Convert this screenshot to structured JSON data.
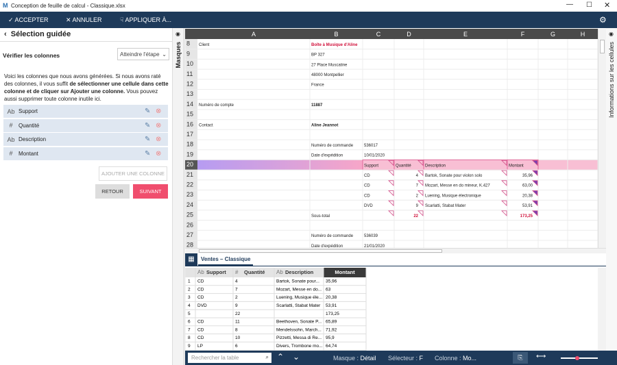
{
  "window": {
    "title": "Conception de feuille de calcul - Classique.xlsx"
  },
  "toolbar": {
    "accept": "ACCEPTER",
    "cancel": "ANNULER",
    "apply": "APPLIQUER À..."
  },
  "panel": {
    "title": "Sélection guidée",
    "step_label": "Vérifier les colonnes",
    "step_select": "Atteindre l'étape",
    "intro": [
      "Voici les colonnes que nous avons générées. Si nous avons raté des colonnes, il vous suffit ",
      "de sélectionner une cellule dans cette colonne et de cliquer sur Ajouter une colonne.",
      "Vous pouvez aussi supprimer toute colonne inutile ici."
    ],
    "columns": [
      {
        "type": "Ab",
        "name": "Support"
      },
      {
        "type": "#",
        "name": "Quantité"
      },
      {
        "type": "Ab",
        "name": "Description"
      },
      {
        "type": "#",
        "name": "Montant"
      }
    ],
    "add_button": "AJOUTER UNE COLONNE",
    "back_button": "RETOUR",
    "next_button": "SUIVANT"
  },
  "side_tabs": {
    "left": "Masques",
    "right": "Informations sur les cellules"
  },
  "sheet": {
    "columns": [
      "A",
      "B",
      "C",
      "D",
      "E",
      "F",
      "G",
      "H"
    ],
    "rows": [
      {
        "number": "8",
        "cells": [
          "Client",
          "Boîte à Musique d'Aline"
        ]
      },
      {
        "number": "9",
        "cells": [
          null,
          "BP 327"
        ]
      },
      {
        "number": "10",
        "cells": [
          null,
          "27 Place Muscatine"
        ]
      },
      {
        "number": "11",
        "cells": [
          null,
          "48000 Montpellier"
        ]
      },
      {
        "number": "12",
        "cells": [
          null,
          "France"
        ]
      },
      {
        "number": "13",
        "cells": []
      },
      {
        "number": "14",
        "cells": [
          "Numéro de compte",
          "11887"
        ]
      },
      {
        "number": "15",
        "cells": []
      },
      {
        "number": "16",
        "cells": [
          "Contact",
          "Aline Jeannot"
        ]
      },
      {
        "number": "17",
        "cells": []
      },
      {
        "number": "18",
        "cells": [
          null,
          "Numéro de commande",
          "536017"
        ]
      },
      {
        "number": "19",
        "cells": [
          null,
          "Date d'expédition",
          "10/01/2020"
        ]
      },
      {
        "number": "20",
        "cells": [
          null,
          null,
          "Support",
          "Quantité",
          "Description",
          "Montant"
        ]
      },
      {
        "number": "21",
        "cells": [
          null,
          null,
          "CD",
          "4",
          "Bartok, Sonate pour violon solo",
          "35,96"
        ]
      },
      {
        "number": "22",
        "cells": [
          null,
          null,
          "CD",
          "7",
          "Mozart, Messe en do mineur, K.427",
          "63,00"
        ]
      },
      {
        "number": "23",
        "cells": [
          null,
          null,
          "CD",
          "2",
          "Luening, Musique électronique",
          "20,38"
        ]
      },
      {
        "number": "24",
        "cells": [
          null,
          null,
          "DVD",
          "9",
          "Scarlatti, Stabat Mater",
          "53,91"
        ]
      },
      {
        "number": "25",
        "cells": [
          null,
          "Sous-total",
          null,
          "22",
          null,
          "173,25"
        ]
      },
      {
        "number": "26",
        "cells": []
      },
      {
        "number": "27",
        "cells": [
          null,
          "Numéro de commande",
          "536039"
        ]
      },
      {
        "number": "28",
        "cells": [
          null,
          "Date d'expédition",
          "21/01/2020"
        ]
      }
    ]
  },
  "tab": "Ventes – Classique",
  "table": {
    "headers": [
      {
        "type": "Ab",
        "name": "Support"
      },
      {
        "type": "#",
        "name": "Quantité"
      },
      {
        "type": "Ab",
        "name": "Description"
      },
      {
        "name": "Montant"
      }
    ],
    "rows": [
      {
        "number": "1",
        "cells": [
          "CD",
          "4",
          "Bartok, Sonate pour...",
          "35,96"
        ]
      },
      {
        "number": "2",
        "cells": [
          "CD",
          "7",
          "Mozart, Messe en do...",
          "63"
        ]
      },
      {
        "number": "3",
        "cells": [
          "CD",
          "2",
          "Luening, Musique éle...",
          "20,38"
        ]
      },
      {
        "number": "4",
        "cells": [
          "DVD",
          "9",
          "Scarlatti, Stabat Mater",
          "53,91"
        ]
      },
      {
        "number": "5",
        "cells": [
          null,
          "22",
          null,
          "173,25"
        ]
      },
      {
        "number": "6",
        "cells": [
          "CD",
          "11",
          "Beethoven, Sonate P...",
          "65,89"
        ]
      },
      {
        "number": "7",
        "cells": [
          "CD",
          "8",
          "Mendelssohn, March...",
          "71,92"
        ]
      },
      {
        "number": "8",
        "cells": [
          "CD",
          "10",
          "Pizzetti, Messa di Re...",
          "95,9"
        ]
      },
      {
        "number": "9",
        "cells": [
          "LP",
          "6",
          "Divers, Trombone mo...",
          "64,74"
        ]
      }
    ]
  },
  "status": {
    "search": "Rechercher la table",
    "mask_label": "Masque :",
    "mask": "Détail",
    "selector_label": "Sélecteur :",
    "selector": "F",
    "column_label": "Colonne :",
    "column": "Mo..."
  }
}
